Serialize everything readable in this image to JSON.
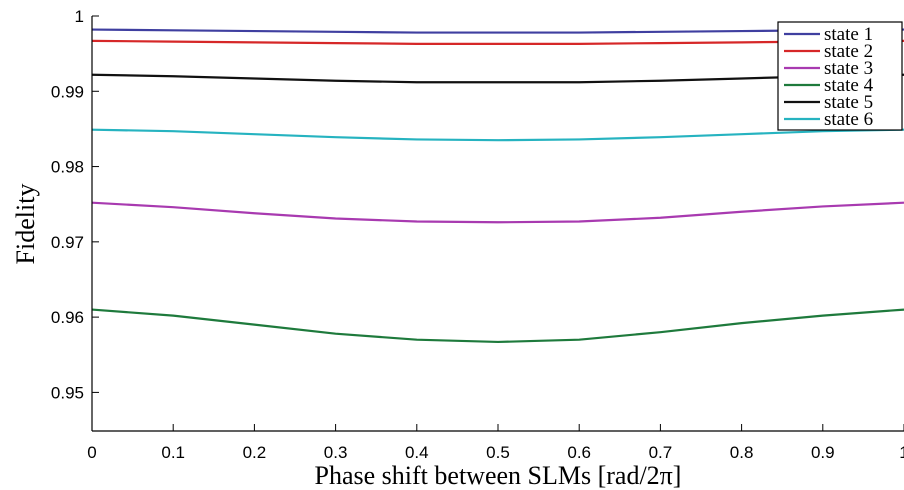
{
  "chart_data": {
    "type": "line",
    "xlabel": "Phase shift between SLMs [rad/2π]",
    "ylabel": "Fidelity",
    "xlim": [
      0,
      1
    ],
    "ylim": [
      0.945,
      1
    ],
    "x_ticks": [
      "0",
      "0.1",
      "0.2",
      "0.3",
      "0.4",
      "0.5",
      "0.6",
      "0.7",
      "0.8",
      "0.9",
      "1"
    ],
    "y_ticks": [
      "0.95",
      "0.96",
      "0.97",
      "0.98",
      "0.99",
      "1"
    ],
    "grid": false,
    "legend_position": "top-right",
    "x": [
      0,
      0.1,
      0.2,
      0.3,
      0.4,
      0.5,
      0.6,
      0.7,
      0.8,
      0.9,
      1.0
    ],
    "series": [
      {
        "name": "state 1",
        "color": "#3f3fa0",
        "values": [
          0.9982,
          0.9981,
          0.998,
          0.9979,
          0.9978,
          0.9978,
          0.9978,
          0.9979,
          0.998,
          0.9981,
          0.9982
        ]
      },
      {
        "name": "state 2",
        "color": "#d62728",
        "values": [
          0.9967,
          0.9966,
          0.9965,
          0.9964,
          0.9963,
          0.9963,
          0.9963,
          0.9964,
          0.9965,
          0.9966,
          0.9967
        ]
      },
      {
        "name": "state 3",
        "color": "#a83ab0",
        "values": [
          0.9752,
          0.9746,
          0.9738,
          0.9731,
          0.9727,
          0.9726,
          0.9727,
          0.9732,
          0.974,
          0.9747,
          0.9752
        ]
      },
      {
        "name": "state 4",
        "color": "#1e7a3c",
        "values": [
          0.961,
          0.9602,
          0.959,
          0.9578,
          0.957,
          0.9567,
          0.957,
          0.958,
          0.9592,
          0.9602,
          0.961
        ]
      },
      {
        "name": "state 5",
        "color": "#111111",
        "values": [
          0.9922,
          0.992,
          0.9917,
          0.9914,
          0.9912,
          0.9912,
          0.9912,
          0.9914,
          0.9917,
          0.992,
          0.9922
        ]
      },
      {
        "name": "state 6",
        "color": "#26b3c0",
        "values": [
          0.9849,
          0.9847,
          0.9843,
          0.9839,
          0.9836,
          0.9835,
          0.9836,
          0.9839,
          0.9843,
          0.9847,
          0.9849
        ]
      }
    ]
  }
}
